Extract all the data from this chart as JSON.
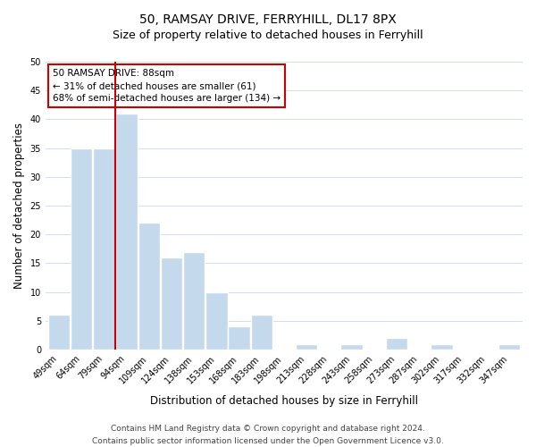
{
  "title": "50, RAMSAY DRIVE, FERRYHILL, DL17 8PX",
  "subtitle": "Size of property relative to detached houses in Ferryhill",
  "xlabel": "Distribution of detached houses by size in Ferryhill",
  "ylabel": "Number of detached properties",
  "bin_labels": [
    "49sqm",
    "64sqm",
    "79sqm",
    "94sqm",
    "109sqm",
    "124sqm",
    "138sqm",
    "153sqm",
    "168sqm",
    "183sqm",
    "198sqm",
    "213sqm",
    "228sqm",
    "243sqm",
    "258sqm",
    "273sqm",
    "287sqm",
    "302sqm",
    "317sqm",
    "332sqm",
    "347sqm"
  ],
  "bin_counts": [
    6,
    35,
    35,
    41,
    22,
    16,
    17,
    10,
    4,
    6,
    0,
    1,
    0,
    1,
    0,
    2,
    0,
    1,
    0,
    0,
    1
  ],
  "bar_color": "#c5d9ed",
  "bar_edge_color": "#ffffff",
  "grid_color": "#d0e0f0",
  "vline_color": "#cc0000",
  "annotation_box_text": "50 RAMSAY DRIVE: 88sqm\n← 31% of detached houses are smaller (61)\n68% of semi-detached houses are larger (134) →",
  "ylim": [
    0,
    50
  ],
  "yticks": [
    0,
    5,
    10,
    15,
    20,
    25,
    30,
    35,
    40,
    45,
    50
  ],
  "footer_line1": "Contains HM Land Registry data © Crown copyright and database right 2024.",
  "footer_line2": "Contains public sector information licensed under the Open Government Licence v3.0.",
  "background_color": "#ffffff",
  "title_fontsize": 10,
  "subtitle_fontsize": 9,
  "xlabel_fontsize": 8.5,
  "ylabel_fontsize": 8.5,
  "tick_fontsize": 7,
  "annotation_fontsize": 7.5,
  "footer_fontsize": 6.5
}
